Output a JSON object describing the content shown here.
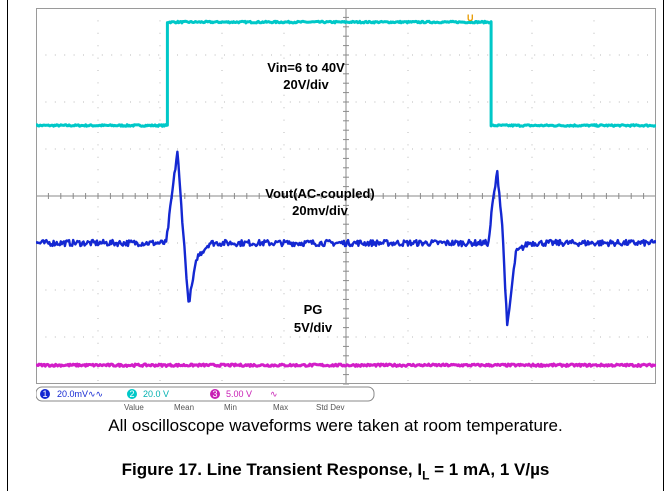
{
  "chart_data": {
    "type": "line",
    "title": "",
    "xlabel": "",
    "ylabel": "",
    "grid": true,
    "grid_divisions": {
      "x": 10,
      "y": 8
    },
    "x_unit": "div",
    "xlim": [
      0,
      10
    ],
    "series": [
      {
        "name": "Vin=6 to 40V",
        "scale": "20V/div",
        "color": "#00c8c8",
        "x": [
          0,
          2.12,
          2.12,
          7.34,
          7.34,
          10
        ],
        "values_div": [
          1.5,
          1.5,
          3.7,
          3.7,
          1.5,
          1.5
        ]
      },
      {
        "name": "Vout(AC-coupled)",
        "scale": "20mv/div",
        "color": "#1428d2",
        "x": [
          0,
          2.1,
          2.2,
          2.28,
          2.36,
          2.46,
          2.6,
          2.8,
          7.3,
          7.36,
          7.44,
          7.52,
          7.6,
          7.74,
          7.95,
          10
        ],
        "values_div": [
          -1.0,
          -1.0,
          0.1,
          0.95,
          -0.5,
          -2.3,
          -1.3,
          -1.0,
          -1.0,
          -0.2,
          0.5,
          -0.6,
          -2.8,
          -1.2,
          -1.0,
          -1.0
        ]
      },
      {
        "name": "PG",
        "scale": "5V/div",
        "color": "#d21ec8",
        "x": [
          0,
          10
        ],
        "values_div": [
          -3.6,
          -3.6
        ]
      }
    ],
    "trigger_marker": "U"
  },
  "scope": {
    "status_bar": {
      "ch1": {
        "num": "1",
        "text": "20.0mV∿∿",
        "color": "#1428d2"
      },
      "ch2": {
        "num": "2",
        "text": "20.0 V",
        "color": "#00c8c8"
      },
      "ch3": {
        "num": "3",
        "text": "5.00 V",
        "color": "#c81eb4"
      },
      "extra": "∿"
    },
    "stat_headers": [
      "Value",
      "Mean",
      "Min",
      "Max",
      "Std Dev"
    ]
  },
  "caption": "All oscilloscope waveforms were taken at room temperature.",
  "figure": {
    "title_prefix": "Figure 17. Line Transient Response, I",
    "title_sub": "L",
    "title_suffix": " = 1 mA, 1 V/µs"
  }
}
